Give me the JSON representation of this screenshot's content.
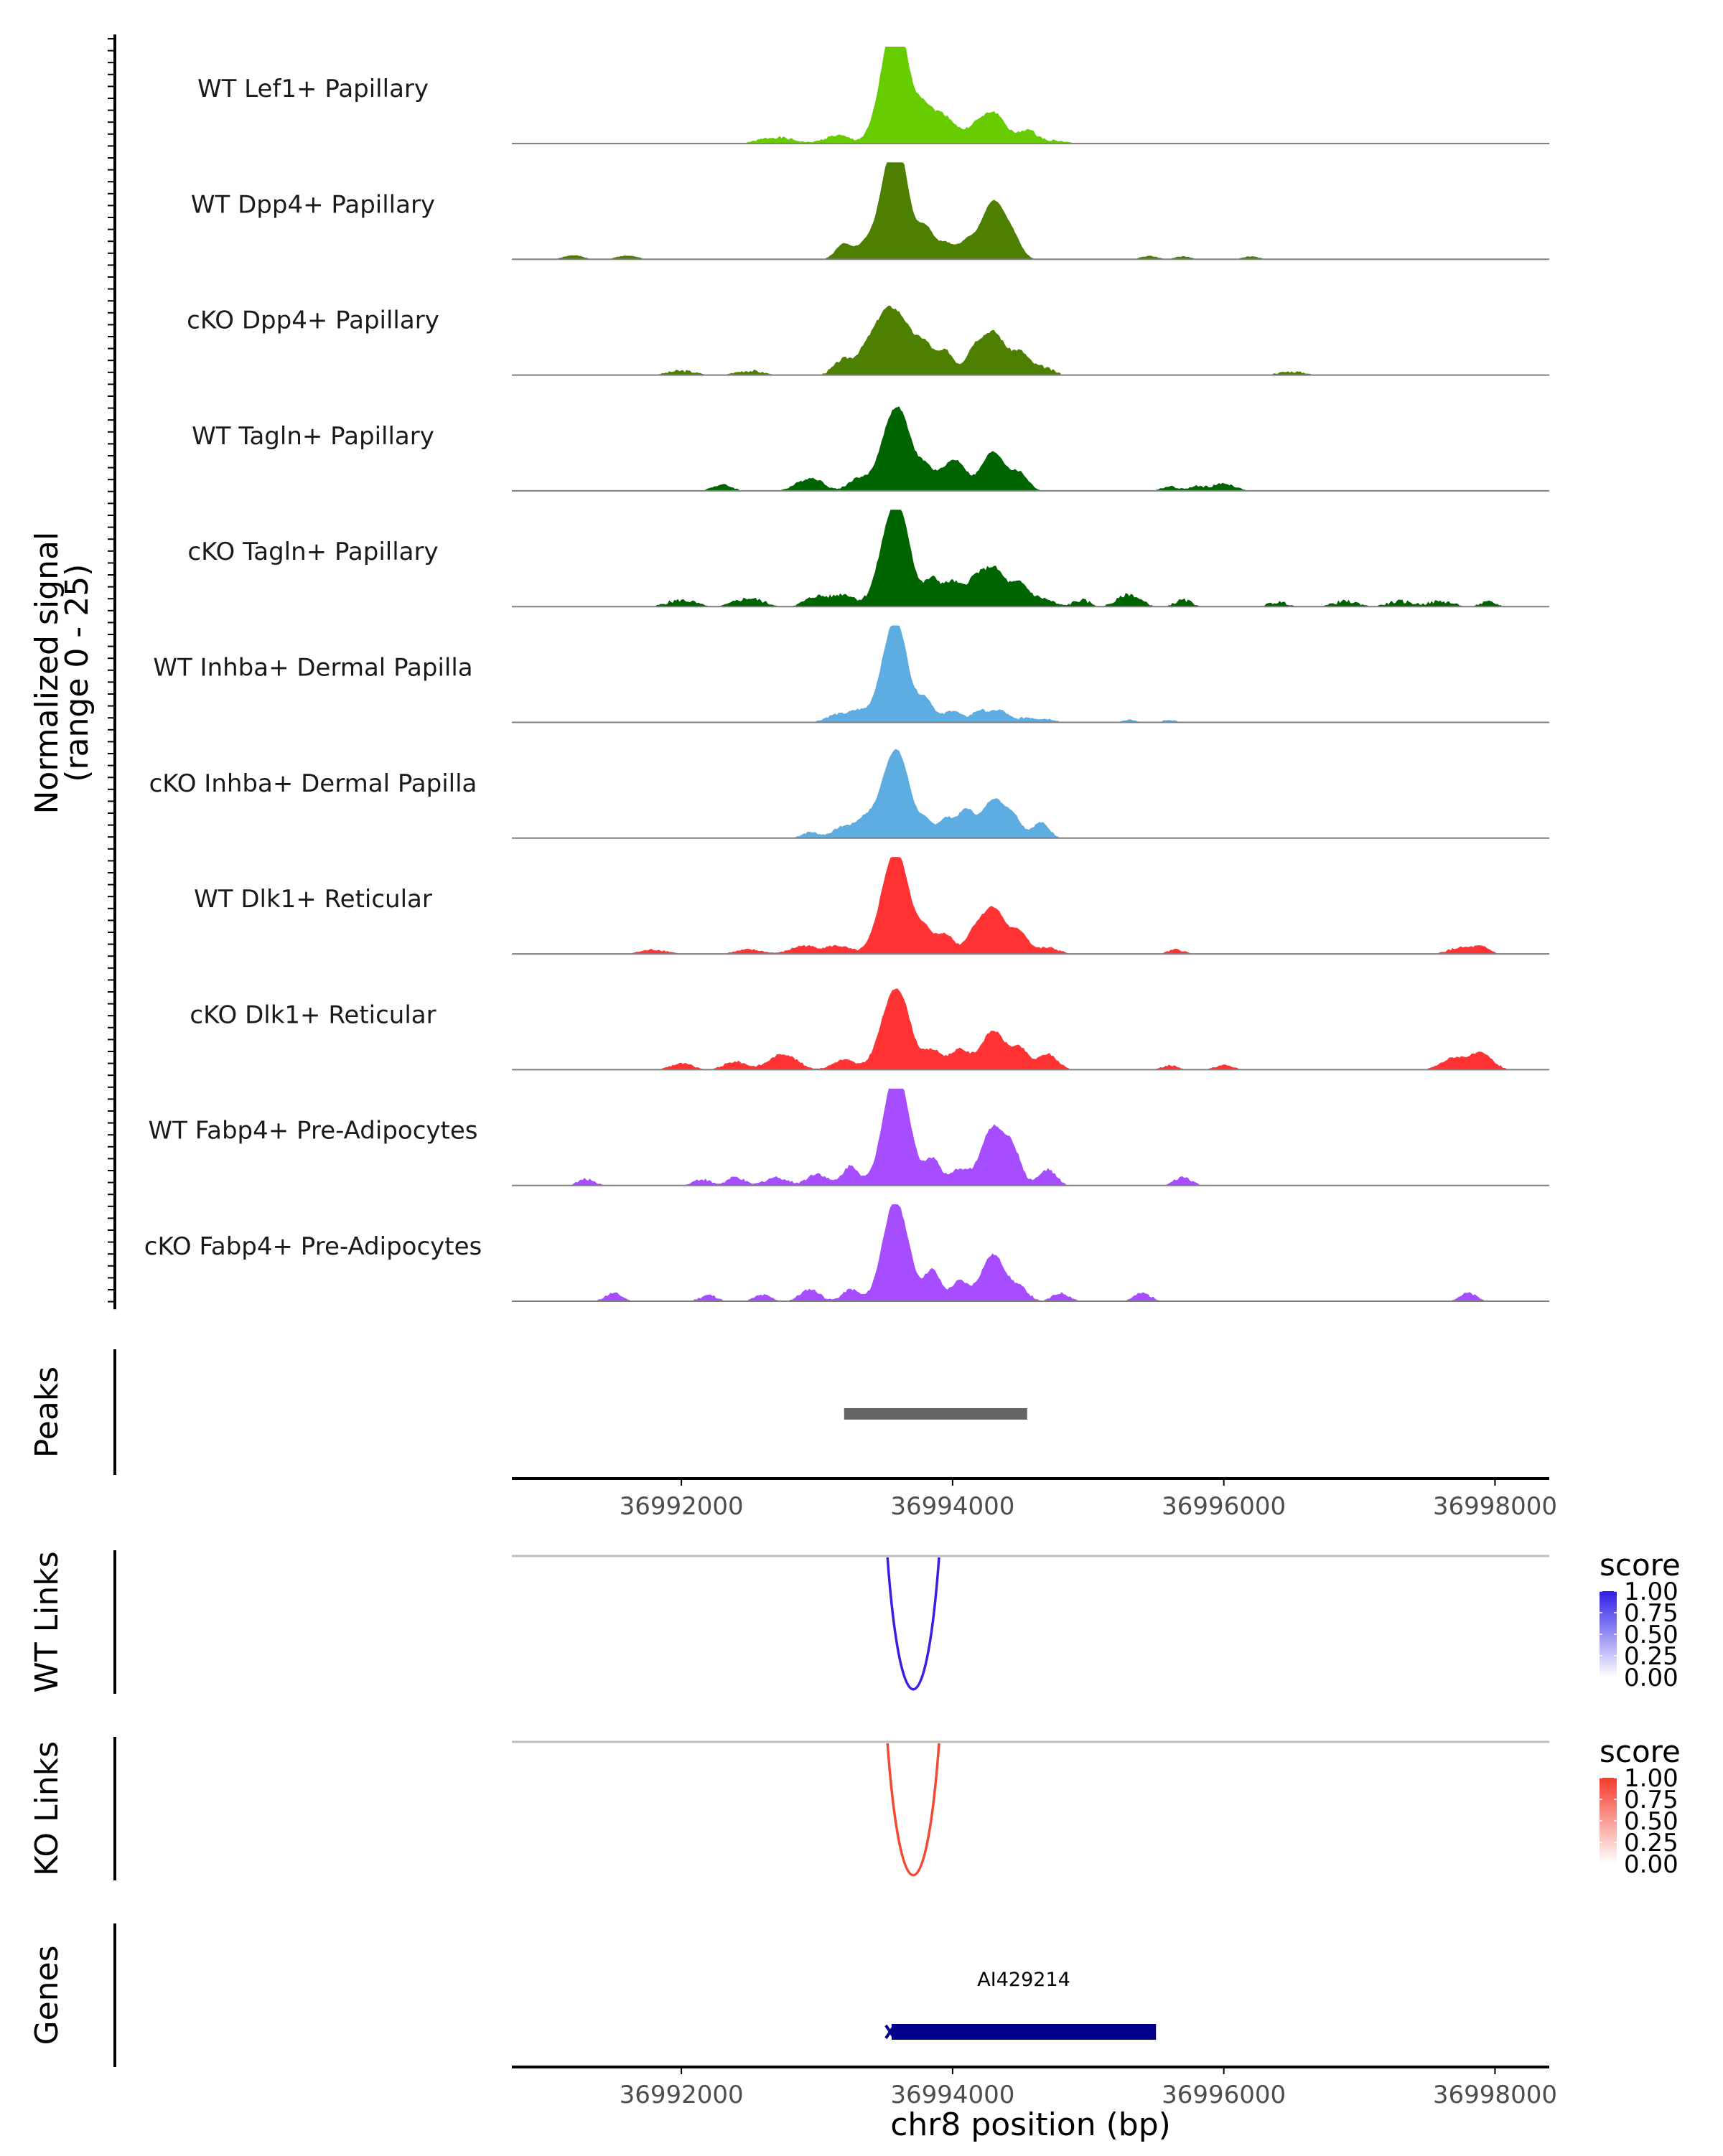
{
  "chart_data": {
    "type": "area",
    "title": "",
    "region": {
      "chromosome": "chr8",
      "start": 36990750,
      "end": 36998400
    },
    "signal": {
      "ylabel_line1": "Normalized signal",
      "ylabel_line2": "(range 0 - 25)",
      "ylim": [
        0,
        25
      ],
      "tracks": [
        {
          "name": "WT Lef1+ Papillary",
          "color": "#66CC00",
          "peaks": [
            [
              36993550,
              25,
              90
            ],
            [
              36993620,
              13,
              70
            ],
            [
              36993780,
              9,
              60
            ],
            [
              36993900,
              6,
              60
            ],
            [
              36994000,
              4,
              60
            ],
            [
              36994150,
              3,
              60
            ],
            [
              36994300,
              8,
              90
            ],
            [
              36994550,
              3,
              60
            ],
            [
              36993150,
              2,
              90
            ],
            [
              36992700,
              1.5,
              120
            ],
            [
              36994700,
              0.8,
              120
            ]
          ],
          "noise": 0.35,
          "seed": 1
        },
        {
          "name": "WT Dpp4+ Papillary",
          "color": "#4D8000",
          "peaks": [
            [
              36993550,
              24,
              90
            ],
            [
              36993620,
              11,
              70
            ],
            [
              36993800,
              8,
              60
            ],
            [
              36993950,
              4,
              60
            ],
            [
              36994100,
              4,
              60
            ],
            [
              36994300,
              15,
              90
            ],
            [
              36994450,
              4,
              60
            ],
            [
              36993200,
              4,
              60
            ],
            [
              36993350,
              3,
              60
            ],
            [
              36991200,
              1,
              70
            ],
            [
              36991600,
              1,
              70
            ],
            [
              36995450,
              0.8,
              60
            ],
            [
              36995700,
              0.7,
              60
            ],
            [
              36996200,
              0.7,
              60
            ]
          ],
          "noise": 0.15,
          "seed": 2
        },
        {
          "name": "cKO Dpp4+ Papillary",
          "color": "#4D8000",
          "peaks": [
            [
              36993500,
              15,
              90
            ],
            [
              36993650,
              10,
              80
            ],
            [
              36993800,
              7,
              60
            ],
            [
              36993950,
              6,
              60
            ],
            [
              36994150,
              5,
              60
            ],
            [
              36994300,
              11,
              90
            ],
            [
              36994500,
              5,
              60
            ],
            [
              36993200,
              4,
              70
            ],
            [
              36993350,
              4,
              60
            ],
            [
              36994650,
              2,
              80
            ],
            [
              36992000,
              1,
              100
            ],
            [
              36992500,
              1,
              100
            ],
            [
              36996500,
              0.8,
              100
            ]
          ],
          "noise": 0.4,
          "seed": 3
        },
        {
          "name": "WT Tagln+ Papillary",
          "color": "#006400",
          "peaks": [
            [
              36993550,
              17,
              90
            ],
            [
              36993650,
              9,
              70
            ],
            [
              36993800,
              6,
              60
            ],
            [
              36993950,
              5,
              60
            ],
            [
              36994050,
              6,
              60
            ],
            [
              36994300,
              10,
              90
            ],
            [
              36994500,
              4,
              60
            ],
            [
              36993300,
              3,
              70
            ],
            [
              36993000,
              2,
              70
            ],
            [
              36992300,
              1.5,
              70
            ],
            [
              36992900,
              2,
              80
            ],
            [
              36995600,
              1,
              60
            ],
            [
              36995800,
              1,
              60
            ],
            [
              36996000,
              1.8,
              80
            ]
          ],
          "noise": 0.3,
          "seed": 4
        },
        {
          "name": "cKO Tagln+ Papillary",
          "color": "#006400",
          "peaks": [
            [
              36993550,
              22,
              90
            ],
            [
              36993650,
              10,
              70
            ],
            [
              36993850,
              7,
              60
            ],
            [
              36994000,
              6,
              60
            ],
            [
              36994150,
              5,
              60
            ],
            [
              36994300,
              10,
              90
            ],
            [
              36994500,
              5,
              60
            ],
            [
              36993200,
              3,
              80
            ],
            [
              36993000,
              2.5,
              80
            ],
            [
              36992500,
              2,
              100
            ],
            [
              36992000,
              1.5,
              100
            ],
            [
              36994650,
              2,
              80
            ],
            [
              36994950,
              1.5,
              60
            ],
            [
              36995300,
              3,
              80
            ],
            [
              36995700,
              1.5,
              60
            ],
            [
              36996400,
              1,
              70
            ],
            [
              36996900,
              1.2,
              90
            ],
            [
              36997300,
              1.2,
              90
            ],
            [
              36997600,
              1.2,
              90
            ],
            [
              36997950,
              1,
              60
            ]
          ],
          "noise": 0.5,
          "seed": 5
        },
        {
          "name": "WT Inhba+ Dermal Papilla",
          "color": "#5DADE2",
          "peaks": [
            [
              36993550,
              20,
              90
            ],
            [
              36993620,
              9,
              70
            ],
            [
              36993800,
              6,
              60
            ],
            [
              36994000,
              3,
              60
            ],
            [
              36994200,
              3,
              60
            ],
            [
              36994350,
              3,
              60
            ],
            [
              36993150,
              2,
              80
            ],
            [
              36993300,
              2.5,
              60
            ],
            [
              36994550,
              1.2,
              60
            ],
            [
              36994700,
              0.8,
              60
            ],
            [
              36995300,
              0.6,
              50
            ],
            [
              36995600,
              0.6,
              50
            ]
          ],
          "noise": 0.3,
          "seed": 6
        },
        {
          "name": "cKO Inhba+ Dermal Papilla",
          "color": "#5DADE2",
          "peaks": [
            [
              36993550,
              19,
              90
            ],
            [
              36993650,
              8,
              70
            ],
            [
              36993800,
              4,
              50
            ],
            [
              36993950,
              5,
              60
            ],
            [
              36994100,
              7,
              60
            ],
            [
              36994300,
              10,
              80
            ],
            [
              36994450,
              5,
              60
            ],
            [
              36994650,
              4,
              60
            ],
            [
              36993200,
              3,
              80
            ],
            [
              36993350,
              4,
              60
            ],
            [
              36992950,
              1.5,
              60
            ]
          ],
          "noise": 0.25,
          "seed": 7
        },
        {
          "name": "WT Dlk1+ Reticular",
          "color": "#FF3333",
          "peaks": [
            [
              36993550,
              22,
              90
            ],
            [
              36993650,
              9,
              70
            ],
            [
              36993800,
              6,
              60
            ],
            [
              36993950,
              5,
              60
            ],
            [
              36994150,
              4,
              60
            ],
            [
              36994300,
              12,
              90
            ],
            [
              36994500,
              5,
              60
            ],
            [
              36993150,
              2,
              90
            ],
            [
              36992900,
              2,
              90
            ],
            [
              36992500,
              1,
              100
            ],
            [
              36991800,
              1,
              100
            ],
            [
              36994700,
              1.5,
              80
            ],
            [
              36995650,
              1,
              60
            ],
            [
              36997750,
              1.5,
              90
            ],
            [
              36997900,
              1.5,
              60
            ]
          ],
          "noise": 0.3,
          "seed": 8
        },
        {
          "name": "cKO Dlk1+ Reticular",
          "color": "#FF3333",
          "peaks": [
            [
              36993550,
              17,
              90
            ],
            [
              36993650,
              8,
              70
            ],
            [
              36993850,
              5,
              70
            ],
            [
              36994050,
              5,
              70
            ],
            [
              36994300,
              10,
              90
            ],
            [
              36994500,
              5,
              60
            ],
            [
              36994700,
              4,
              70
            ],
            [
              36993200,
              2.5,
              80
            ],
            [
              36992750,
              4,
              100
            ],
            [
              36992400,
              2,
              80
            ],
            [
              36992000,
              1.5,
              80
            ],
            [
              36995600,
              1,
              60
            ],
            [
              36996000,
              1,
              70
            ],
            [
              36997700,
              3,
              90
            ],
            [
              36997900,
              4,
              80
            ]
          ],
          "noise": 0.3,
          "seed": 9
        },
        {
          "name": "WT Fabp4+ Pre-Adipocytes",
          "color": "#A64DFF",
          "peaks": [
            [
              36993550,
              23,
              80
            ],
            [
              36993650,
              13,
              70
            ],
            [
              36993850,
              7,
              60
            ],
            [
              36994050,
              4,
              60
            ],
            [
              36994300,
              15,
              90
            ],
            [
              36994450,
              7,
              60
            ],
            [
              36994700,
              4,
              60
            ],
            [
              36993250,
              5,
              60
            ],
            [
              36993000,
              3,
              70
            ],
            [
              36992700,
              2,
              80
            ],
            [
              36992400,
              2,
              60
            ],
            [
              36991300,
              1.5,
              60
            ],
            [
              36992150,
              1.5,
              60
            ],
            [
              36995700,
              2,
              60
            ]
          ],
          "noise": 0.4,
          "seed": 10
        },
        {
          "name": "cKO Fabp4+ Pre-Adipocytes",
          "color": "#A64DFF",
          "peaks": [
            [
              36993550,
              21,
              80
            ],
            [
              36993650,
              10,
              70
            ],
            [
              36993850,
              8,
              60
            ],
            [
              36994050,
              5,
              60
            ],
            [
              36994300,
              12,
              90
            ],
            [
              36994500,
              3,
              60
            ],
            [
              36993250,
              3,
              60
            ],
            [
              36992950,
              3,
              70
            ],
            [
              36991500,
              2,
              60
            ],
            [
              36992200,
              1.5,
              60
            ],
            [
              36992600,
              1.5,
              60
            ],
            [
              36994800,
              2,
              60
            ],
            [
              36995400,
              2,
              60
            ],
            [
              36997800,
              2,
              60
            ]
          ],
          "noise": 0.35,
          "seed": 11
        }
      ]
    },
    "peaks": {
      "label": "Peaks",
      "color": "#666666",
      "intervals": [
        [
          36993200,
          36994550
        ]
      ]
    },
    "position_axis": {
      "ticks": [
        36992000,
        36994000,
        36996000,
        36998000
      ],
      "tick_labels": [
        "36992000",
        "36994000",
        "36996000",
        "36998000"
      ],
      "xlabel": "chr8 position (bp)"
    },
    "links": [
      {
        "label": "WT Links",
        "color": "#3A1FE0",
        "score": 1.0,
        "start": 36993520,
        "end": 36993900,
        "legend": {
          "title": "score",
          "low_color": "#ffffff",
          "high_color": "#2F1FE6",
          "labels": [
            "1.00",
            "0.75",
            "0.50",
            "0.25",
            "0.00"
          ]
        }
      },
      {
        "label": "KO Links",
        "color": "#F24A35",
        "score": 1.0,
        "start": 36993520,
        "end": 36993900,
        "legend": {
          "title": "score",
          "low_color": "#ffffff",
          "high_color": "#F53A2A",
          "labels": [
            "1.00",
            "0.75",
            "0.50",
            "0.25",
            "0.00"
          ]
        }
      }
    ],
    "genes": {
      "label": "Genes",
      "color": "#00008B",
      "items": [
        {
          "name": "AI429214",
          "start": 36993550,
          "end": 36995500,
          "strand": "-"
        }
      ]
    }
  }
}
